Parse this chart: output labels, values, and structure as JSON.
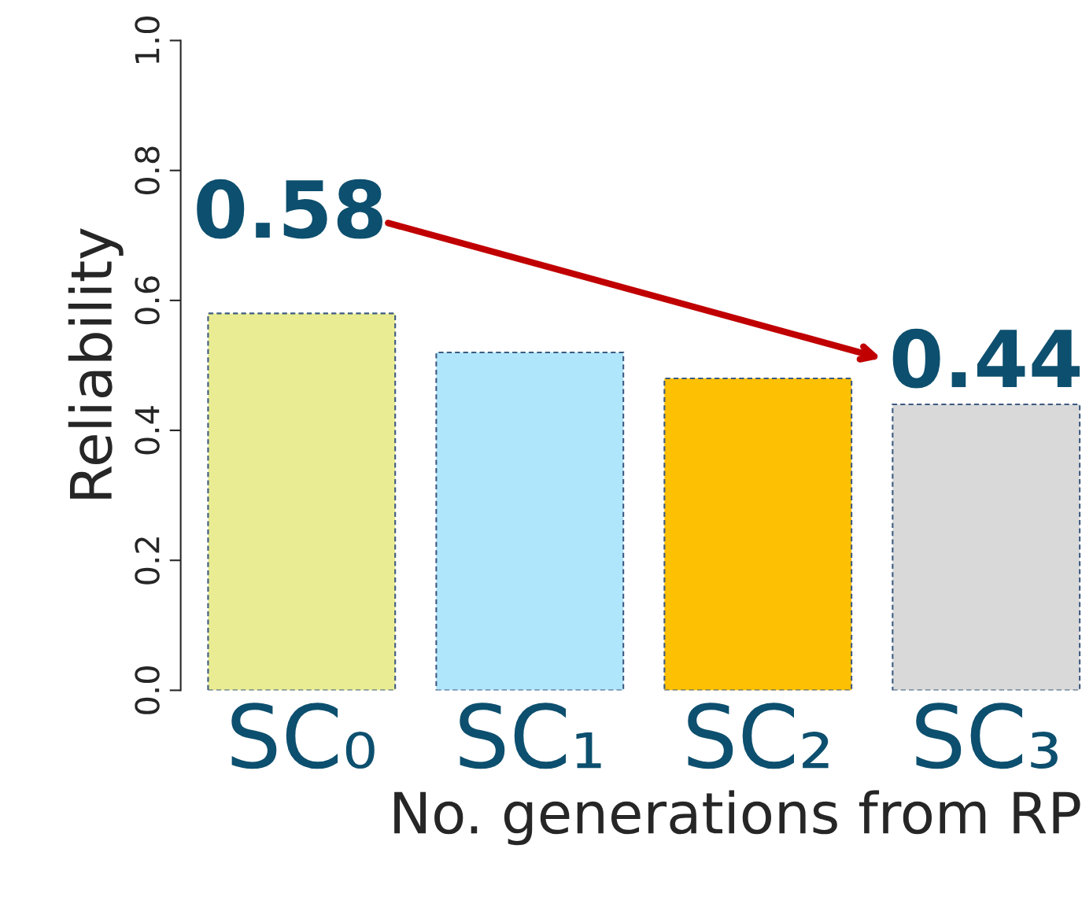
{
  "chart_data": {
    "type": "bar",
    "xlabel": "No. generations from RP",
    "ylabel": "Reliability",
    "categories": [
      "SC₀",
      "SC₁",
      "SC₂",
      "SC₃"
    ],
    "values": [
      0.58,
      0.52,
      0.48,
      0.44
    ],
    "colors": [
      "#e9ec92",
      "#b0e6fc",
      "#fec002",
      "#d9d9d9"
    ],
    "value_labels": [
      "0.58",
      null,
      null,
      "0.44"
    ],
    "ylim": [
      0,
      1.0
    ],
    "yticks": [
      {
        "value": 0,
        "label": "0.0"
      },
      0.2,
      0.4,
      0.6,
      0.8,
      {
        "value": 1.0,
        "label": "1.0"
      }
    ],
    "grid": false,
    "legend": false
  }
}
